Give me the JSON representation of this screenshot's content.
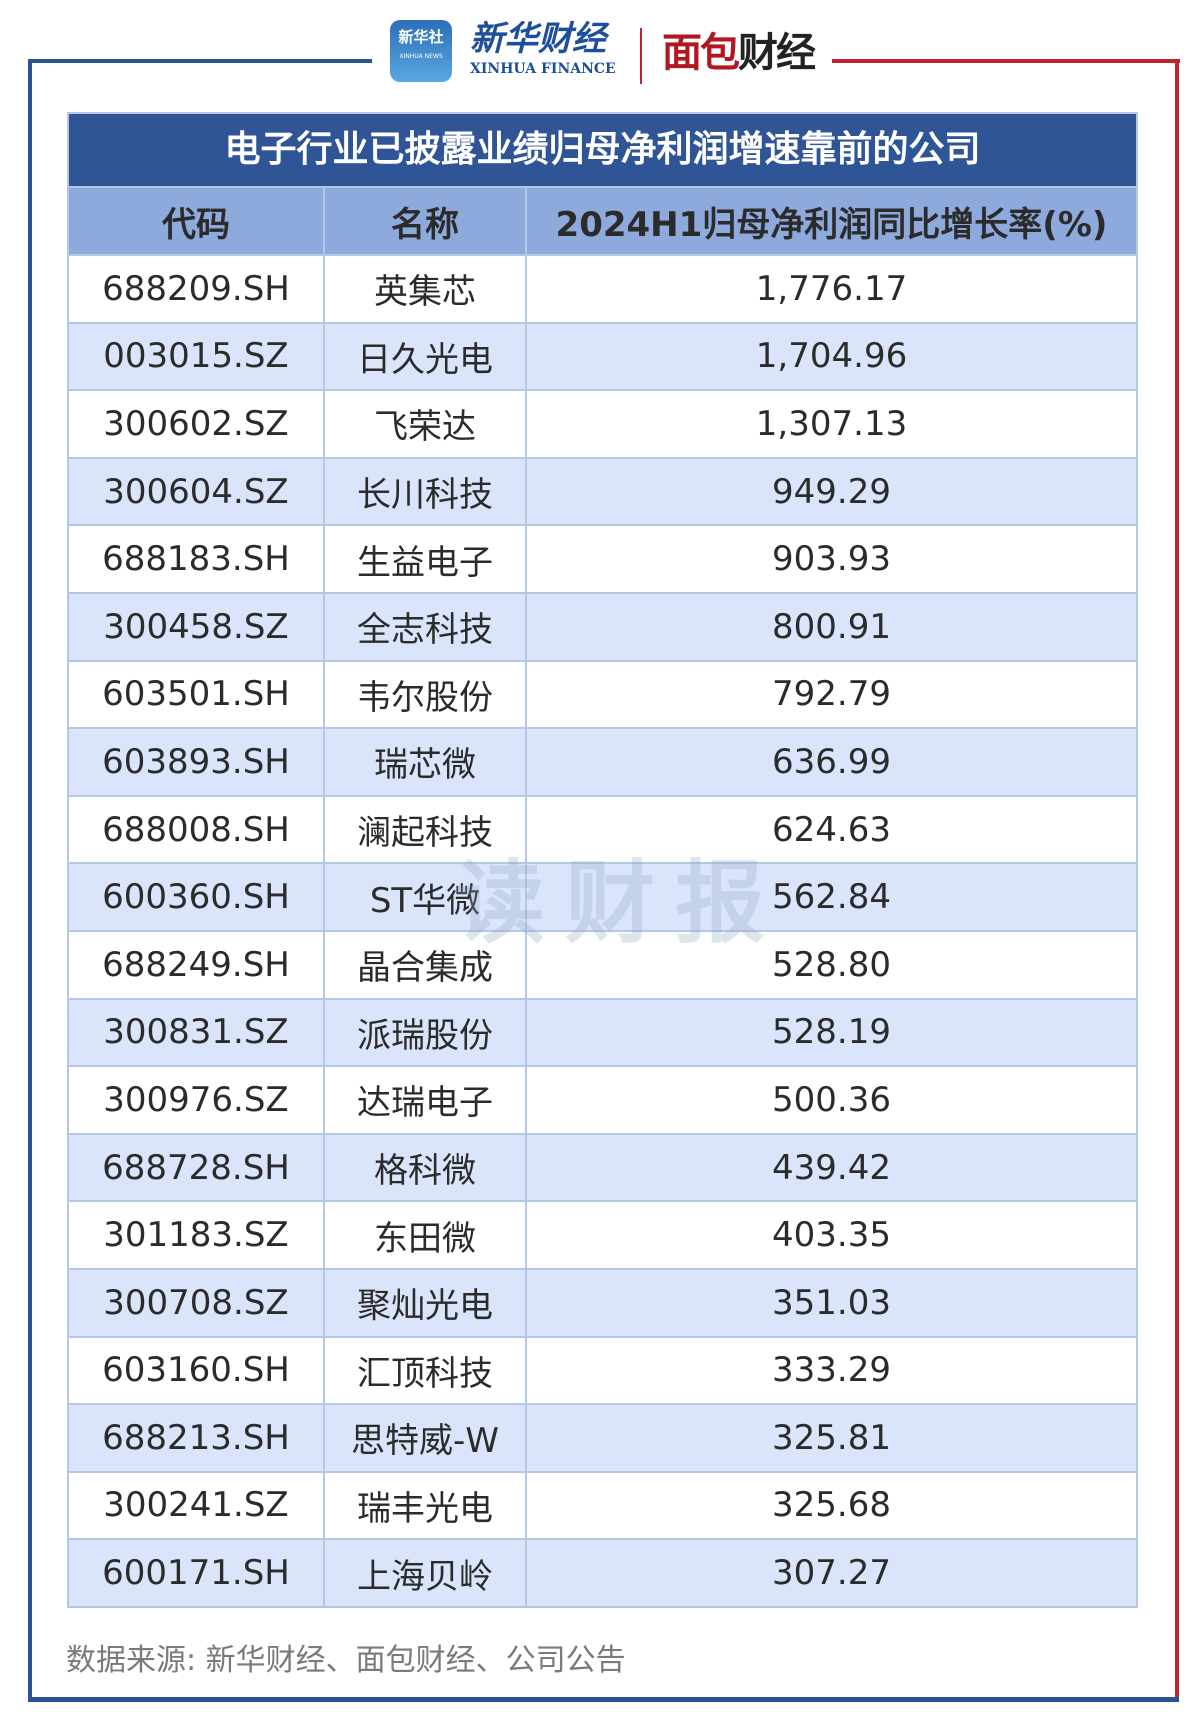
{
  "logos": {
    "xinhua_news_cn": "新华社",
    "xinhua_news_en": "XINHUA NEWS",
    "xinhua_finance_cn": "新华财经",
    "xinhua_finance_en": "XINHUA FINANCE",
    "mianbao_a": "面包",
    "mianbao_b": "财经"
  },
  "watermark": "读财报",
  "table": {
    "title": "电子行业已披露业绩归母净利润增速靠前的公司",
    "headers": [
      "代码",
      "名称",
      "2024H1归母净利润同比增长率(%)"
    ],
    "rows": [
      [
        "688209.SH",
        "英集芯",
        "1,776.17"
      ],
      [
        "003015.SZ",
        "日久光电",
        "1,704.96"
      ],
      [
        "300602.SZ",
        "飞荣达",
        "1,307.13"
      ],
      [
        "300604.SZ",
        "长川科技",
        "949.29"
      ],
      [
        "688183.SH",
        "生益电子",
        "903.93"
      ],
      [
        "300458.SZ",
        "全志科技",
        "800.91"
      ],
      [
        "603501.SH",
        "韦尔股份",
        "792.79"
      ],
      [
        "603893.SH",
        "瑞芯微",
        "636.99"
      ],
      [
        "688008.SH",
        "澜起科技",
        "624.63"
      ],
      [
        "600360.SH",
        "ST华微",
        "562.84"
      ],
      [
        "688249.SH",
        "晶合集成",
        "528.80"
      ],
      [
        "300831.SZ",
        "派瑞股份",
        "528.19"
      ],
      [
        "300976.SZ",
        "达瑞电子",
        "500.36"
      ],
      [
        "688728.SH",
        "格科微",
        "439.42"
      ],
      [
        "301183.SZ",
        "东田微",
        "403.35"
      ],
      [
        "300708.SZ",
        "聚灿光电",
        "351.03"
      ],
      [
        "603160.SH",
        "汇顶科技",
        "333.29"
      ],
      [
        "688213.SH",
        "思特威-W",
        "325.81"
      ],
      [
        "300241.SZ",
        "瑞丰光电",
        "325.68"
      ],
      [
        "600171.SH",
        "上海贝岭",
        "307.27"
      ]
    ]
  },
  "footer": "数据来源: 新华财经、面包财经、公司公告",
  "colors": {
    "title_bg": "#2f5597",
    "header_bg": "#8eaadc",
    "alt_row": "#dae5fb",
    "border": "#b4c7e7",
    "frame_blue": "#2a5394",
    "frame_red": "#c0232c"
  }
}
